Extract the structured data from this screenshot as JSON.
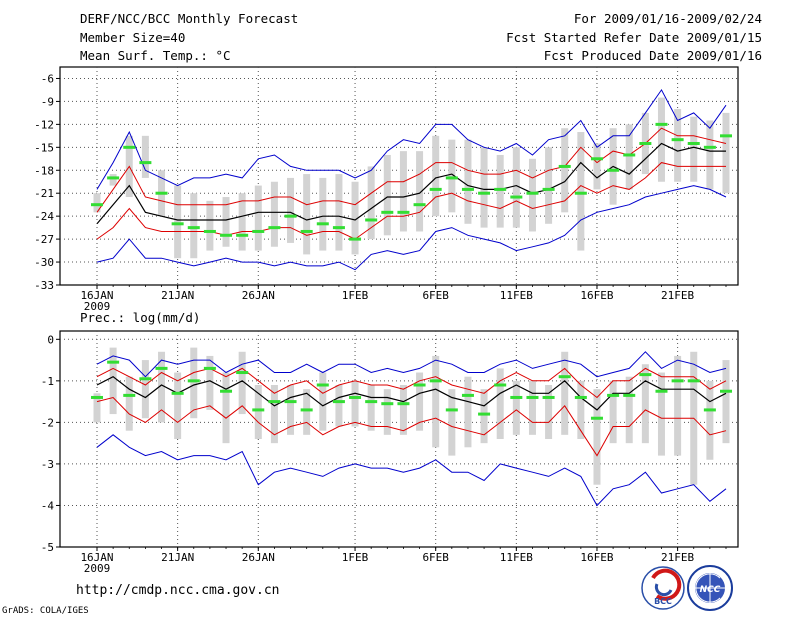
{
  "header": {
    "left": [
      "DERF/NCC/BCC Monthly Forecast",
      "Member Size=40",
      "Mean Surf. Temp.: °C"
    ],
    "right": [
      "For 2009/01/16-2009/02/24",
      "Fcst Started Refer Date 2009/01/15",
      "Fcst Produced Date 2009/01/16"
    ]
  },
  "footer": {
    "url": "http://cmdp.ncc.cma.gov.cn",
    "grads": "GrADS: COLA/IGES"
  },
  "logos": {
    "bcc": "BCC",
    "ncc": "NCC"
  },
  "colors": {
    "ensemble_mean": "#000000",
    "stddev_band": "#dd0000",
    "min_max": "#0000cc",
    "member_median": "#33dd33",
    "spread_bar": "#d3d3d3",
    "grid": "#555555"
  },
  "chart_data": [
    {
      "type": "line",
      "title": "Mean Surf. Temp.: °C",
      "x": [
        "16JAN",
        "17JAN",
        "18JAN",
        "19JAN",
        "20JAN",
        "21JAN",
        "22JAN",
        "23JAN",
        "24JAN",
        "25JAN",
        "26JAN",
        "27JAN",
        "28JAN",
        "29JAN",
        "30JAN",
        "31JAN",
        "1FEB",
        "2FEB",
        "3FEB",
        "4FEB",
        "5FEB",
        "6FEB",
        "7FEB",
        "8FEB",
        "9FEB",
        "10FEB",
        "11FEB",
        "12FEB",
        "13FEB",
        "14FEB",
        "15FEB",
        "16FEB",
        "17FEB",
        "18FEB",
        "19FEB",
        "20FEB",
        "21FEB",
        "22FEB",
        "23FEB",
        "24FEB"
      ],
      "xtick_labels": [
        "16JAN",
        "21JAN",
        "26JAN",
        "1FEB",
        "6FEB",
        "11FEB",
        "16FEB",
        "21FEB"
      ],
      "xtick_year": "2009",
      "ylim": [
        -33,
        -4.5
      ],
      "yticks": [
        -6,
        -9,
        -12,
        -15,
        -18,
        -21,
        -24,
        -27,
        -30,
        -33
      ],
      "series": [
        {
          "name": "mean",
          "values": [
            -25,
            -22.5,
            -20,
            -23.5,
            -24,
            -24.5,
            -24.5,
            -24.5,
            -24.5,
            -24,
            -23.5,
            -23.5,
            -23.5,
            -24.5,
            -24,
            -24,
            -24.5,
            -23,
            -21.5,
            -21.5,
            -21,
            -19,
            -18.5,
            -20,
            -20.5,
            -20.5,
            -20,
            -21,
            -20.5,
            -19.5,
            -17,
            -19,
            -17.5,
            -18.5,
            -16.5,
            -14.5,
            -15.5,
            -15,
            -15.5,
            -15.5
          ]
        },
        {
          "name": "mean_plus_std",
          "values": [
            -23.5,
            -20.5,
            -17.5,
            -21.5,
            -22,
            -22.5,
            -22.5,
            -22.5,
            -22.5,
            -22,
            -22,
            -21.5,
            -21.5,
            -22.5,
            -22,
            -22,
            -22.5,
            -21,
            -19.5,
            -19.5,
            -18.5,
            -17,
            -17,
            -18,
            -18.5,
            -18.5,
            -18,
            -19,
            -18,
            -17.5,
            -15,
            -17,
            -15.5,
            -16,
            -14.5,
            -12.5,
            -13.5,
            -13.5,
            -14,
            -14.5
          ]
        },
        {
          "name": "mean_minus_std",
          "values": [
            -27,
            -25.5,
            -23,
            -25.5,
            -26,
            -26,
            -26,
            -26,
            -26.5,
            -26,
            -26,
            -25.5,
            -25.5,
            -26.5,
            -26,
            -26,
            -27,
            -25.5,
            -24,
            -24,
            -23.5,
            -21.5,
            -21,
            -22,
            -22.5,
            -23,
            -22,
            -23,
            -22.5,
            -22,
            -20,
            -21,
            -20,
            -20.5,
            -19,
            -17,
            -17.5,
            -17.5,
            -17.5,
            -17.5
          ]
        },
        {
          "name": "max",
          "values": [
            -20.5,
            -17,
            -13,
            -18,
            -19,
            -20,
            -19,
            -19,
            -18.5,
            -19,
            -16.5,
            -16,
            -17.5,
            -18,
            -18,
            -18,
            -19,
            -18,
            -15.5,
            -14,
            -14.5,
            -12,
            -12,
            -14,
            -15,
            -15.5,
            -14.5,
            -16,
            -14,
            -13.5,
            -11.5,
            -15,
            -13.5,
            -13.5,
            -10.5,
            -7.5,
            -11.5,
            -10.5,
            -12.5,
            -9.5
          ]
        },
        {
          "name": "min",
          "values": [
            -30,
            -29.5,
            -27,
            -29.5,
            -29.5,
            -30,
            -30.5,
            -30,
            -29.5,
            -30,
            -30,
            -30.5,
            -30,
            -30.5,
            -30.5,
            -30,
            -31,
            -29,
            -28.5,
            -29,
            -28.5,
            -26,
            -25.5,
            -26.5,
            -27,
            -27.5,
            -28.5,
            -28,
            -27.5,
            -26.5,
            -24.5,
            -23.5,
            -23,
            -22.5,
            -21.5,
            -21,
            -20.5,
            -20,
            -20.5,
            -21.5
          ]
        },
        {
          "name": "member_median",
          "values": [
            -22.5,
            -19,
            -15,
            -17,
            -21,
            -25,
            -25.5,
            -26,
            -26.5,
            -26.5,
            -26,
            -25.5,
            -24,
            -26,
            -25,
            -25.5,
            -27,
            -24.5,
            -23.5,
            -23.5,
            -22.5,
            -20.5,
            -19,
            -20.5,
            -21,
            -20.5,
            -21.5,
            -21,
            -20.5,
            -17.5,
            -21,
            -16.5,
            -18,
            -16,
            -14.5,
            -12,
            -14,
            -14.5,
            -15,
            -13.5
          ]
        },
        {
          "name": "spread_high",
          "values": [
            -21,
            -18.5,
            -13.5,
            -13.5,
            -18,
            -20,
            -21,
            -22,
            -21.5,
            -21,
            -20,
            -19.5,
            -19,
            -18.5,
            -19,
            -18.5,
            -19.5,
            -17.5,
            -16,
            -15.5,
            -15.5,
            -13.5,
            -14,
            -14,
            -15,
            -16,
            -15,
            -16.5,
            -15,
            -12.5,
            -13,
            -14.5,
            -12.5,
            -12,
            -10.5,
            -8.5,
            -10,
            -11,
            -11.5,
            -10.5
          ]
        },
        {
          "name": "spread_low",
          "values": [
            -23.5,
            -20,
            -21.5,
            -19,
            -24,
            -29.5,
            -29.5,
            -28.5,
            -28,
            -28.5,
            -28.5,
            -28,
            -27.5,
            -29,
            -28.5,
            -28.5,
            -29,
            -27,
            -26.5,
            -26,
            -26,
            -24,
            -23.5,
            -25,
            -25.5,
            -25.5,
            -25.5,
            -26,
            -25,
            -23.5,
            -28.5,
            -20.5,
            -22.5,
            -20.5,
            -18.5,
            -19.5,
            -19.5,
            -19.5,
            -20.5,
            -21
          ]
        }
      ]
    },
    {
      "type": "line",
      "title": "Prec.: log(mm/d)",
      "x": [
        "16JAN",
        "17JAN",
        "18JAN",
        "19JAN",
        "20JAN",
        "21JAN",
        "22JAN",
        "23JAN",
        "24JAN",
        "25JAN",
        "26JAN",
        "27JAN",
        "28JAN",
        "29JAN",
        "30JAN",
        "31JAN",
        "1FEB",
        "2FEB",
        "3FEB",
        "4FEB",
        "5FEB",
        "6FEB",
        "7FEB",
        "8FEB",
        "9FEB",
        "10FEB",
        "11FEB",
        "12FEB",
        "13FEB",
        "14FEB",
        "15FEB",
        "16FEB",
        "17FEB",
        "18FEB",
        "19FEB",
        "20FEB",
        "21FEB",
        "22FEB",
        "23FEB",
        "24FEB"
      ],
      "xtick_labels": [
        "16JAN",
        "21JAN",
        "26JAN",
        "1FEB",
        "6FEB",
        "11FEB",
        "16FEB",
        "21FEB"
      ],
      "xtick_year": "2009",
      "ylim": [
        -5,
        0.2
      ],
      "yticks": [
        0,
        -1,
        -2,
        -3,
        -4,
        -5
      ],
      "series": [
        {
          "name": "mean",
          "values": [
            -1.1,
            -0.9,
            -1.2,
            -1.4,
            -1.1,
            -1.3,
            -1.1,
            -1,
            -1.2,
            -1,
            -1.3,
            -1.6,
            -1.4,
            -1.3,
            -1.6,
            -1.4,
            -1.3,
            -1.4,
            -1.4,
            -1.5,
            -1.3,
            -1.2,
            -1.4,
            -1.5,
            -1.6,
            -1.3,
            -1.1,
            -1.3,
            -1.3,
            -1.0,
            -1.4,
            -1.7,
            -1.3,
            -1.3,
            -1.0,
            -1.2,
            -1.2,
            -1.2,
            -1.5,
            -1.3
          ]
        },
        {
          "name": "mean_plus_std",
          "values": [
            -0.9,
            -0.7,
            -0.9,
            -1.1,
            -0.8,
            -1,
            -0.8,
            -0.7,
            -0.9,
            -0.7,
            -1,
            -1.3,
            -1.1,
            -1,
            -1.3,
            -1.1,
            -1,
            -1.1,
            -1.1,
            -1.2,
            -1,
            -0.9,
            -1.1,
            -1.2,
            -1.3,
            -1,
            -0.8,
            -1,
            -1,
            -0.7,
            -1.1,
            -1.4,
            -1,
            -1,
            -0.7,
            -0.9,
            -0.9,
            -0.9,
            -1.2,
            -1.0
          ]
        },
        {
          "name": "mean_minus_std",
          "values": [
            -1.5,
            -1.4,
            -1.8,
            -2,
            -1.7,
            -2,
            -1.7,
            -1.6,
            -1.9,
            -1.6,
            -2,
            -2.3,
            -2.1,
            -2,
            -2.3,
            -2.1,
            -2,
            -2.1,
            -2.1,
            -2.2,
            -2,
            -1.9,
            -2.1,
            -2.2,
            -2.3,
            -2,
            -1.7,
            -2,
            -2,
            -1.6,
            -2.2,
            -2.8,
            -2.1,
            -2.1,
            -1.7,
            -1.9,
            -1.9,
            -1.9,
            -2.3,
            -2.2
          ]
        },
        {
          "name": "max",
          "values": [
            -0.6,
            -0.4,
            -0.5,
            -0.9,
            -0.5,
            -0.6,
            -0.5,
            -0.5,
            -0.8,
            -0.6,
            -0.5,
            -0.8,
            -0.8,
            -0.6,
            -0.8,
            -0.6,
            -0.6,
            -0.8,
            -0.7,
            -0.8,
            -0.7,
            -0.5,
            -0.6,
            -0.8,
            -0.8,
            -0.6,
            -0.5,
            -0.7,
            -0.6,
            -0.5,
            -0.6,
            -0.9,
            -0.8,
            -0.7,
            -0.3,
            -0.7,
            -0.5,
            -0.6,
            -0.8,
            -0.7
          ]
        },
        {
          "name": "min",
          "values": [
            -2.6,
            -2.3,
            -2.6,
            -2.8,
            -2.7,
            -2.9,
            -2.8,
            -2.8,
            -2.9,
            -2.7,
            -3.5,
            -3.2,
            -3.1,
            -3.2,
            -3.3,
            -3.1,
            -3.0,
            -3.1,
            -3.1,
            -3.2,
            -3.1,
            -2.9,
            -3.2,
            -3.2,
            -3.4,
            -3.0,
            -3.1,
            -3.2,
            -3.3,
            -3.1,
            -3.3,
            -4.0,
            -3.6,
            -3.5,
            -3.2,
            -3.7,
            -3.6,
            -3.5,
            -3.9,
            -3.6
          ]
        },
        {
          "name": "member_median",
          "values": [
            -1.4,
            -0.55,
            -1.35,
            -0.95,
            -0.7,
            -1.3,
            -1.0,
            -0.7,
            -1.25,
            -0.8,
            -1.7,
            -1.5,
            -1.5,
            -1.7,
            -1.1,
            -1.5,
            -1.4,
            -1.5,
            -1.55,
            -1.55,
            -1.1,
            -1.0,
            -1.7,
            -1.35,
            -1.8,
            -1.1,
            -1.4,
            -1.4,
            -1.4,
            -0.9,
            -1.4,
            -1.9,
            -1.35,
            -1.35,
            -0.85,
            -1.25,
            -1.0,
            -1.0,
            -1.7,
            -1.25
          ]
        },
        {
          "name": "spread_high",
          "values": [
            -1.3,
            -0.2,
            -0.9,
            -0.5,
            -0.3,
            -0.8,
            -0.2,
            -0.4,
            -0.8,
            -0.3,
            -1.1,
            -1.1,
            -1.1,
            -1.2,
            -0.8,
            -1.1,
            -1.0,
            -1.1,
            -1.2,
            -1.1,
            -0.8,
            -0.4,
            -1.2,
            -0.9,
            -1.2,
            -0.7,
            -1.0,
            -1.0,
            -1.1,
            -0.3,
            -1.0,
            -1.2,
            -1.0,
            -0.9,
            -0.6,
            -0.8,
            -0.4,
            -0.3,
            -1.0,
            -0.5
          ]
        },
        {
          "name": "spread_low",
          "values": [
            -2.0,
            -1.8,
            -2.2,
            -1.9,
            -2.0,
            -2.4,
            -1.9,
            -1.7,
            -2.5,
            -1.8,
            -2.4,
            -2.5,
            -2.3,
            -2.3,
            -2.2,
            -2.1,
            -2.1,
            -2.2,
            -2.3,
            -2.3,
            -2.2,
            -2.6,
            -2.8,
            -2.6,
            -2.5,
            -2.4,
            -2.3,
            -2.3,
            -2.4,
            -2.3,
            -2.4,
            -3.5,
            -2.5,
            -2.5,
            -2.5,
            -2.8,
            -2.8,
            -3.5,
            -2.9,
            -2.5
          ]
        }
      ]
    }
  ]
}
